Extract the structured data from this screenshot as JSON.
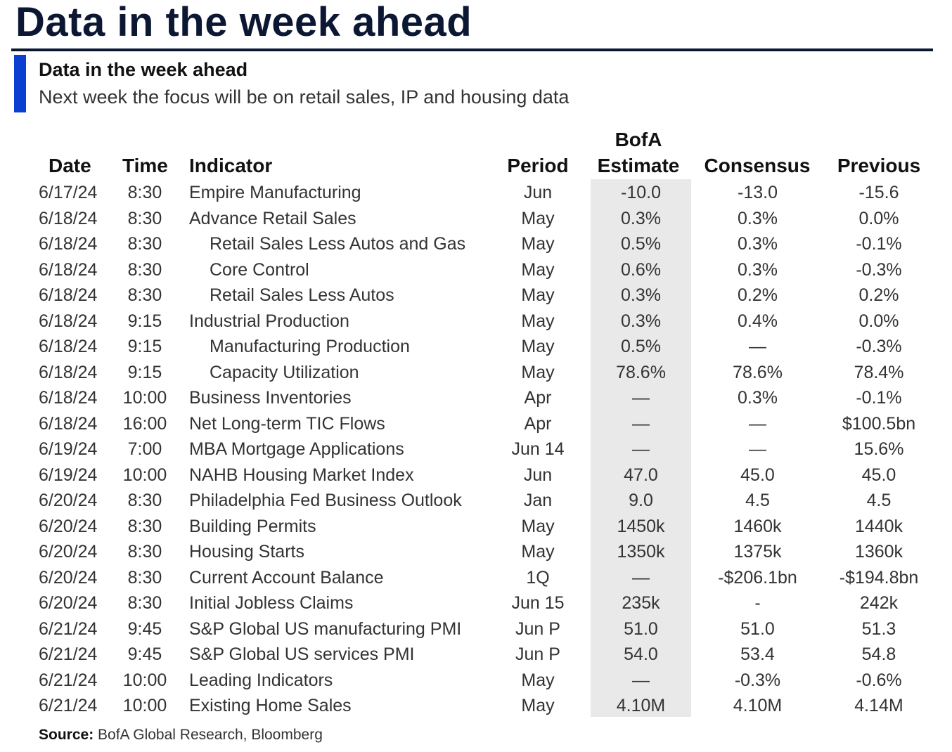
{
  "title": "Data in the week ahead",
  "subtitle": "Data in the week ahead",
  "caption": "Next week the focus will be on retail sales, IP and housing data",
  "colors": {
    "title": "#0b1733",
    "accent_bar": "#0a3fd0",
    "estimate_band": "#e9e9e9"
  },
  "table": {
    "headers": {
      "date": "Date",
      "time": "Time",
      "indicator": "Indicator",
      "period": "Period",
      "estimate_line1": "BofA",
      "estimate_line2": "Estimate",
      "consensus": "Consensus",
      "previous": "Previous"
    },
    "rows": [
      {
        "date": "6/17/24",
        "time": "8:30",
        "indicator": "Empire Manufacturing",
        "indent": false,
        "period": "Jun",
        "estimate": "-10.0",
        "consensus": "-13.0",
        "previous": "-15.6"
      },
      {
        "date": "6/18/24",
        "time": "8:30",
        "indicator": "Advance Retail Sales",
        "indent": false,
        "period": "May",
        "estimate": "0.3%",
        "consensus": "0.3%",
        "previous": "0.0%"
      },
      {
        "date": "6/18/24",
        "time": "8:30",
        "indicator": "Retail Sales Less Autos and Gas",
        "indent": true,
        "period": "May",
        "estimate": "0.5%",
        "consensus": "0.3%",
        "previous": "-0.1%"
      },
      {
        "date": "6/18/24",
        "time": "8:30",
        "indicator": "Core Control",
        "indent": true,
        "period": "May",
        "estimate": "0.6%",
        "consensus": "0.3%",
        "previous": "-0.3%"
      },
      {
        "date": "6/18/24",
        "time": "8:30",
        "indicator": "Retail Sales Less Autos",
        "indent": true,
        "period": "May",
        "estimate": "0.3%",
        "consensus": "0.2%",
        "previous": "0.2%"
      },
      {
        "date": "6/18/24",
        "time": "9:15",
        "indicator": "Industrial Production",
        "indent": false,
        "period": "May",
        "estimate": "0.3%",
        "consensus": "0.4%",
        "previous": "0.0%"
      },
      {
        "date": "6/18/24",
        "time": "9:15",
        "indicator": "Manufacturing Production",
        "indent": true,
        "period": "May",
        "estimate": "0.5%",
        "consensus": "—",
        "previous": "-0.3%"
      },
      {
        "date": "6/18/24",
        "time": "9:15",
        "indicator": "Capacity Utilization",
        "indent": true,
        "period": "May",
        "estimate": "78.6%",
        "consensus": "78.6%",
        "previous": "78.4%"
      },
      {
        "date": "6/18/24",
        "time": "10:00",
        "indicator": "Business Inventories",
        "indent": false,
        "period": "Apr",
        "estimate": "—",
        "consensus": "0.3%",
        "previous": "-0.1%"
      },
      {
        "date": "6/18/24",
        "time": "16:00",
        "indicator": "Net Long-term TIC Flows",
        "indent": false,
        "period": "Apr",
        "estimate": "—",
        "consensus": "—",
        "previous": "$100.5bn"
      },
      {
        "date": "6/19/24",
        "time": "7:00",
        "indicator": "MBA Mortgage Applications",
        "indent": false,
        "period": "Jun 14",
        "estimate": "—",
        "consensus": "—",
        "previous": "15.6%"
      },
      {
        "date": "6/19/24",
        "time": "10:00",
        "indicator": "NAHB Housing Market Index",
        "indent": false,
        "period": "Jun",
        "estimate": "47.0",
        "consensus": "45.0",
        "previous": "45.0"
      },
      {
        "date": "6/20/24",
        "time": "8:30",
        "indicator": "Philadelphia Fed Business Outlook",
        "indent": false,
        "period": "Jan",
        "estimate": "9.0",
        "consensus": "4.5",
        "previous": "4.5"
      },
      {
        "date": "6/20/24",
        "time": "8:30",
        "indicator": "Building Permits",
        "indent": false,
        "period": "May",
        "estimate": "1450k",
        "consensus": "1460k",
        "previous": "1440k"
      },
      {
        "date": "6/20/24",
        "time": "8:30",
        "indicator": "Housing Starts",
        "indent": false,
        "period": "May",
        "estimate": "1350k",
        "consensus": "1375k",
        "previous": "1360k"
      },
      {
        "date": "6/20/24",
        "time": "8:30",
        "indicator": "Current Account Balance",
        "indent": false,
        "period": "1Q",
        "estimate": "—",
        "consensus": "-$206.1bn",
        "previous": "-$194.8bn"
      },
      {
        "date": "6/20/24",
        "time": "8:30",
        "indicator": "Initial Jobless Claims",
        "indent": false,
        "period": "Jun 15",
        "estimate": "235k",
        "consensus": "-",
        "previous": "242k"
      },
      {
        "date": "6/21/24",
        "time": "9:45",
        "indicator": "S&P Global US manufacturing PMI",
        "indent": false,
        "period": "Jun P",
        "estimate": "51.0",
        "consensus": "51.0",
        "previous": "51.3"
      },
      {
        "date": "6/21/24",
        "time": "9:45",
        "indicator": "S&P Global US services PMI",
        "indent": false,
        "period": "Jun P",
        "estimate": "54.0",
        "consensus": "53.4",
        "previous": "54.8"
      },
      {
        "date": "6/21/24",
        "time": "10:00",
        "indicator": "Leading Indicators",
        "indent": false,
        "period": "May",
        "estimate": "—",
        "consensus": "-0.3%",
        "previous": "-0.6%"
      },
      {
        "date": "6/21/24",
        "time": "10:00",
        "indicator": "Existing Home Sales",
        "indent": false,
        "period": "May",
        "estimate": "4.10M",
        "consensus": "4.10M",
        "previous": "4.14M"
      }
    ]
  },
  "source": {
    "label": "Source:",
    "text": "BofA Global Research, Bloomberg"
  }
}
